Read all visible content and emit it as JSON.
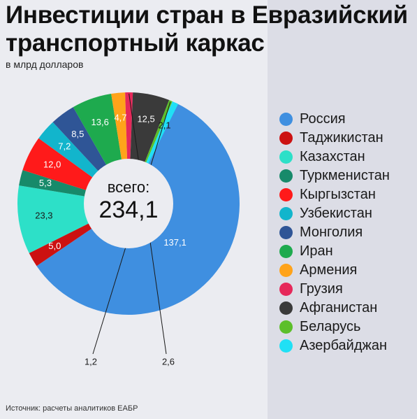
{
  "header": {
    "title_line1": "Инвестиции стран в Евразийский",
    "title_line2": "транспортный каркас",
    "subtitle": "в млрд долларов"
  },
  "center": {
    "label": "всего:",
    "value": "234,1"
  },
  "footer": {
    "source": "Источник: расчеты аналитиков ЕАБР"
  },
  "chart_data": {
    "type": "pie",
    "title": "Инвестиции стран в Евразийский транспортный каркас",
    "unit": "в млрд долларов",
    "total": 234.1,
    "total_label": "234,1",
    "legend_position": "right",
    "slices": [
      {
        "name": "Россия",
        "value": 137.1,
        "label": "137,1",
        "color": "#3f8fe0",
        "label_color": "#ffffff"
      },
      {
        "name": "Таджикистан",
        "value": 5.0,
        "label": "5,0",
        "color": "#cc1111",
        "label_color": "#ffffff"
      },
      {
        "name": "Казахстан",
        "value": 23.3,
        "label": "23,3",
        "color": "#2de0c8",
        "label_color": "#1a1a1a"
      },
      {
        "name": "Туркменистан",
        "value": 5.3,
        "label": "5,3",
        "color": "#178a6a",
        "label_color": "#ffffff"
      },
      {
        "name": "Кыргызстан",
        "value": 12.0,
        "label": "12,0",
        "color": "#ff1a1a",
        "label_color": "#ffffff"
      },
      {
        "name": "Узбекистан",
        "value": 7.2,
        "label": "7,2",
        "color": "#12b5cc",
        "label_color": "#ffffff"
      },
      {
        "name": "Монголия",
        "value": 8.5,
        "label": "8,5",
        "color": "#2f5596",
        "label_color": "#ffffff"
      },
      {
        "name": "Иран",
        "value": 13.6,
        "label": "13,6",
        "color": "#1eaa4e",
        "label_color": "#ffffff"
      },
      {
        "name": "Армения",
        "value": 4.7,
        "label": "4,7",
        "color": "#ffa31a",
        "label_color": "#ffffff"
      },
      {
        "name": "Грузия",
        "value": 2.6,
        "label": "2,6",
        "color": "#e6285a",
        "label_color": "#1a1a1a"
      },
      {
        "name": "Афганистан",
        "value": 12.5,
        "label": "12,5",
        "color": "#3a3a3a",
        "label_color": "#ffffff"
      },
      {
        "name": "Беларусь",
        "value": 1.2,
        "label": "1,2",
        "color": "#5cbf2a",
        "label_color": "#1a1a1a"
      },
      {
        "name": "Азербайджан",
        "value": 2.1,
        "label": "2,1",
        "color": "#20e0f5",
        "label_color": "#1a1a1a"
      }
    ]
  }
}
